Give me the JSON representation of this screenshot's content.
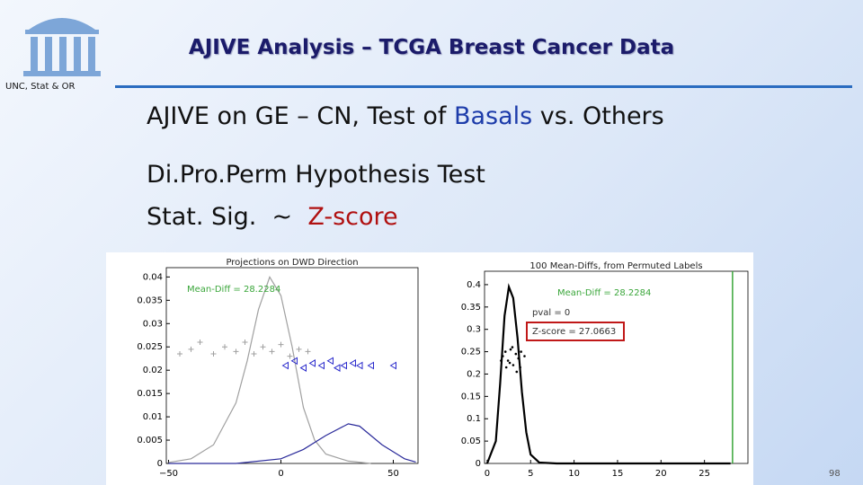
{
  "header": {
    "title": "AJIVE Analysis – TCGA Breast Cancer Data",
    "affiliation": "UNC, Stat & OR"
  },
  "body": {
    "line1": [
      "AJIVE on GE – CN, Test of ",
      "Basals",
      " vs. Others"
    ],
    "line2": "Di.Pro.Perm Hypothesis Test",
    "line3": [
      "Stat. Sig.  ~  ",
      "Z-score"
    ]
  },
  "page_number": "98",
  "chart_data": [
    {
      "type": "line",
      "title": "Projections on DWD Direction",
      "xlim": [
        -51,
        61
      ],
      "xticks": [
        {
          "value": -50,
          "label": "−50"
        },
        0,
        50
      ],
      "ylim": [
        0,
        0.042
      ],
      "yticks": [
        0,
        0.005,
        0.01,
        0.015,
        0.02,
        0.025,
        0.03,
        0.035,
        0.04
      ],
      "annotations": [
        {
          "text": "Mean-Diff = 28.2284",
          "color": "#3aa63a"
        }
      ],
      "series": [
        {
          "kind": "line",
          "color": "#a0a0a0",
          "x": [
            -50,
            -40,
            -30,
            -20,
            -15,
            -10,
            -5,
            0,
            5,
            10,
            15,
            20,
            30,
            40
          ],
          "y": [
            0.0002,
            0.001,
            0.004,
            0.013,
            0.022,
            0.033,
            0.04,
            0.036,
            0.025,
            0.012,
            0.005,
            0.002,
            0.0005,
            0
          ]
        },
        {
          "kind": "line",
          "color": "#2a2a9a",
          "x": [
            -50,
            -20,
            0,
            10,
            20,
            30,
            35,
            45,
            55,
            60
          ],
          "y": [
            0,
            0,
            0.001,
            0.003,
            0.006,
            0.0085,
            0.008,
            0.004,
            0.001,
            0.0003
          ]
        },
        {
          "kind": "points",
          "marker": "plus",
          "color": "#a0a0a0",
          "x": [
            -45,
            -40,
            -36,
            -30,
            -25,
            -20,
            -16,
            -12,
            -8,
            -4,
            0,
            4,
            8,
            12
          ],
          "y": [
            0.0235,
            0.0245,
            0.026,
            0.0235,
            0.025,
            0.024,
            0.026,
            0.0235,
            0.025,
            0.024,
            0.0255,
            0.023,
            0.0245,
            0.024
          ]
        },
        {
          "kind": "points",
          "marker": "triangle",
          "color": "#2a2acc",
          "x": [
            2,
            6,
            10,
            14,
            18,
            22,
            25,
            28,
            32,
            35,
            40,
            50
          ],
          "y": [
            0.021,
            0.022,
            0.0205,
            0.0215,
            0.021,
            0.022,
            0.0205,
            0.021,
            0.0215,
            0.021,
            0.021,
            0.021
          ]
        }
      ]
    },
    {
      "type": "line",
      "title": "100 Mean-Diffs, from Permuted Labels",
      "xlim": [
        -0.3,
        30
      ],
      "xticks": [
        0,
        5,
        10,
        15,
        20,
        25
      ],
      "ylim": [
        0,
        0.43
      ],
      "yticks": [
        0,
        0.05,
        0.1,
        0.15,
        0.2,
        0.25,
        0.3,
        0.35,
        0.4
      ],
      "annotations": [
        {
          "text": "Mean-Diff = 28.2284",
          "color": "#3aa63a"
        },
        {
          "text": "pval = 0",
          "color": "#333333"
        },
        {
          "text": "Z-score = 27.0663",
          "color": "#333333"
        }
      ],
      "reference_line": {
        "x": 28.2284,
        "color": "#3aa63a"
      },
      "series": [
        {
          "kind": "line",
          "color": "#000000",
          "x": [
            0,
            1,
            1.5,
            2,
            2.5,
            3,
            3.5,
            4,
            4.5,
            5,
            6,
            8,
            28
          ],
          "y": [
            0,
            0.05,
            0.18,
            0.33,
            0.395,
            0.37,
            0.28,
            0.16,
            0.07,
            0.02,
            0.002,
            0,
            0
          ]
        },
        {
          "kind": "points",
          "marker": "dot",
          "color": "#000000",
          "x": [
            1.8,
            2.1,
            2.4,
            2.7,
            3.0,
            3.3,
            3.6,
            3.9,
            2.2,
            2.9,
            3.4,
            4.3,
            1.6,
            2.6,
            3.8
          ],
          "y": [
            0.24,
            0.25,
            0.23,
            0.255,
            0.22,
            0.245,
            0.235,
            0.25,
            0.215,
            0.26,
            0.205,
            0.24,
            0.23,
            0.225,
            0.215
          ]
        }
      ]
    }
  ]
}
